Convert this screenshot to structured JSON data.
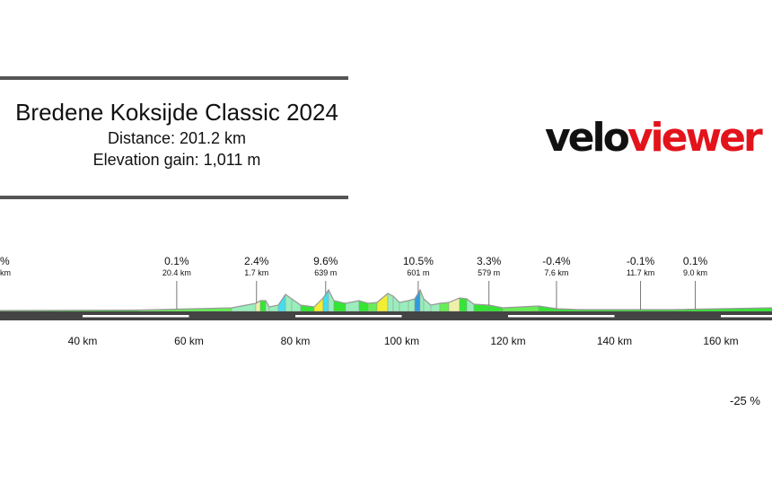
{
  "header": {
    "title": "Bredene Koksijde Classic 2024",
    "distance": "Distance: 201.2 km",
    "elevation_gain": "Elevation gain: 1,011 m"
  },
  "logo": {
    "part1": "velo",
    "part2": "viewer",
    "brand_color": "#e3131b"
  },
  "chart_data": {
    "type": "area",
    "title": "Bredene Koksijde Classic 2024",
    "x_unit": "km",
    "x_ticks": [
      "40 km",
      "60 km",
      "80 km",
      "100 km",
      "120 km",
      "140 km",
      "160 km"
    ],
    "x_tick_values": [
      40,
      60,
      80,
      100,
      120,
      140,
      160
    ],
    "segment_labels": [
      {
        "gradient": "%",
        "length": "km",
        "km": null
      },
      {
        "gradient": "0.1%",
        "length": "20.4 km",
        "km": 57.7
      },
      {
        "gradient": "2.4%",
        "length": "1.7 km",
        "km": 72.7
      },
      {
        "gradient": "9.6%",
        "length": "639 m",
        "km": 85.7
      },
      {
        "gradient": "10.5%",
        "length": "601 m",
        "km": 103.1
      },
      {
        "gradient": "3.3%",
        "length": "579 m",
        "km": 116.4
      },
      {
        "gradient": "-0.4%",
        "length": "7.6 km",
        "km": 129.1
      },
      {
        "gradient": "-0.1%",
        "length": "11.7 km",
        "km": 144.9
      },
      {
        "gradient": "0.1%",
        "length": "9.0 km",
        "km": 155.2
      }
    ],
    "legend_first": "-25 %",
    "gradient_colors": {
      "flat": "#33e633",
      "easy": "#66ee55",
      "mild": "#99eebb",
      "moderate": "#eef0aa",
      "hard": "#f2ee33",
      "steep": "#ee9933",
      "very_steep": "#44ddee",
      "extreme": "#3399dd"
    }
  }
}
